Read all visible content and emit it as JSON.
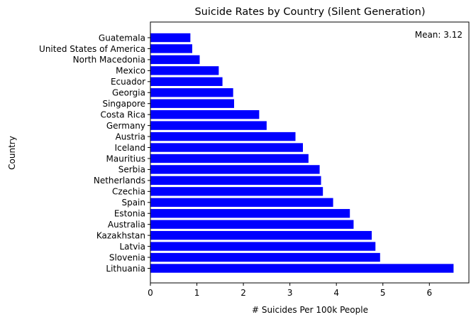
{
  "chart_data": {
    "type": "bar",
    "orientation": "horizontal",
    "title": "Suicide Rates by Country (Silent Generation)",
    "xlabel": "# Suicides Per 100k People",
    "ylabel": "Country",
    "annotation": "Mean: 3.12",
    "annotation_position": "top-right",
    "xlim": [
      0,
      6.85
    ],
    "xticks": [
      0,
      1,
      2,
      3,
      4,
      5,
      6
    ],
    "grid": false,
    "bar_color": "#0000ff",
    "categories": [
      "Lithuania",
      "Slovenia",
      "Latvia",
      "Kazakhstan",
      "Australia",
      "Estonia",
      "Spain",
      "Czechia",
      "Netherlands",
      "Serbia",
      "Mauritius",
      "Iceland",
      "Austria",
      "Germany",
      "Costa Rica",
      "Singapore",
      "Georgia",
      "Ecuador",
      "Mexico",
      "North Macedonia",
      "United States of America",
      "Guatemala"
    ],
    "values": [
      6.52,
      4.94,
      4.84,
      4.76,
      4.37,
      4.29,
      3.93,
      3.71,
      3.67,
      3.64,
      3.4,
      3.28,
      3.12,
      2.5,
      2.34,
      1.8,
      1.78,
      1.55,
      1.47,
      1.06,
      0.9,
      0.86
    ]
  }
}
